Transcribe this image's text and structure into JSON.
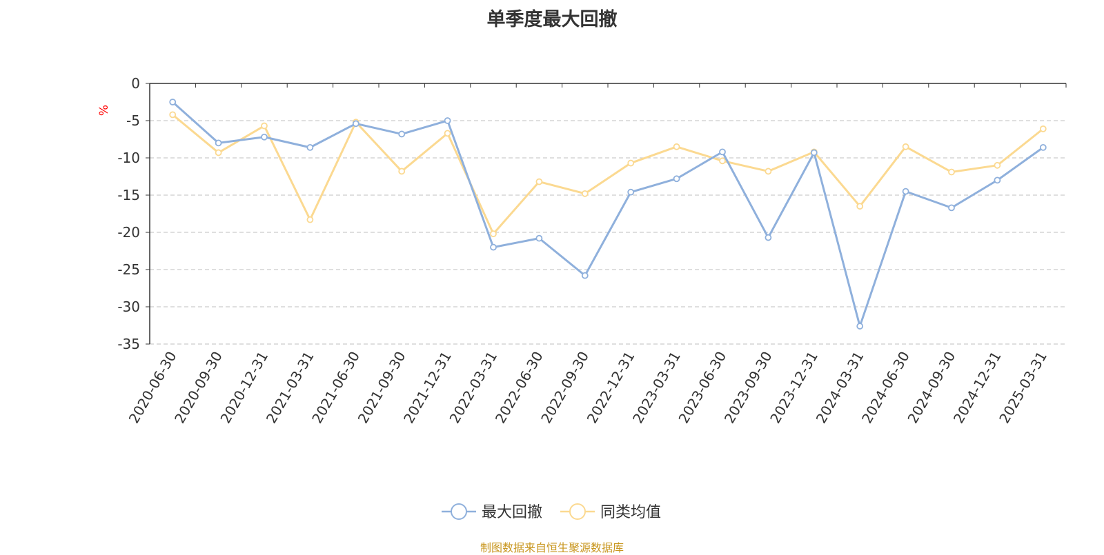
{
  "chart_data": {
    "type": "line",
    "title": "单季度最大回撤",
    "ylabel": "%",
    "ylim": [
      -35,
      0
    ],
    "yticks": [
      0,
      -5,
      -10,
      -15,
      -20,
      -25,
      -30,
      -35
    ],
    "grid": true,
    "legend_position": "bottom",
    "categories": [
      "2020-06-30",
      "2020-09-30",
      "2020-12-31",
      "2021-03-31",
      "2021-06-30",
      "2021-09-30",
      "2021-12-31",
      "2022-03-31",
      "2022-06-30",
      "2022-09-30",
      "2022-12-31",
      "2023-03-31",
      "2023-06-30",
      "2023-09-30",
      "2023-12-31",
      "2024-03-31",
      "2024-06-30",
      "2024-09-30",
      "2024-12-31",
      "2025-03-31"
    ],
    "series": [
      {
        "name": "最大回撤",
        "color": "#8fb0dc",
        "values": [
          -2.5,
          -8.0,
          -7.2,
          -8.6,
          -5.4,
          -6.8,
          -5.0,
          -22.0,
          -20.8,
          -25.8,
          -14.6,
          -12.8,
          -9.2,
          -20.7,
          -9.3,
          -32.6,
          -14.5,
          -16.7,
          -13.0,
          -8.6
        ]
      },
      {
        "name": "同类均值",
        "color": "#fbd991",
        "values": [
          -4.2,
          -9.3,
          -5.7,
          -18.3,
          -5.2,
          -11.8,
          -6.7,
          -20.2,
          -13.2,
          -14.8,
          -10.7,
          -8.5,
          -10.4,
          -11.8,
          -9.2,
          -16.5,
          -8.5,
          -11.9,
          -11.0,
          -6.1
        ]
      }
    ]
  },
  "source": {
    "text": "制图数据来自恒生聚源数据库",
    "color": "#c8961e"
  },
  "unit_color": "#ff0000"
}
